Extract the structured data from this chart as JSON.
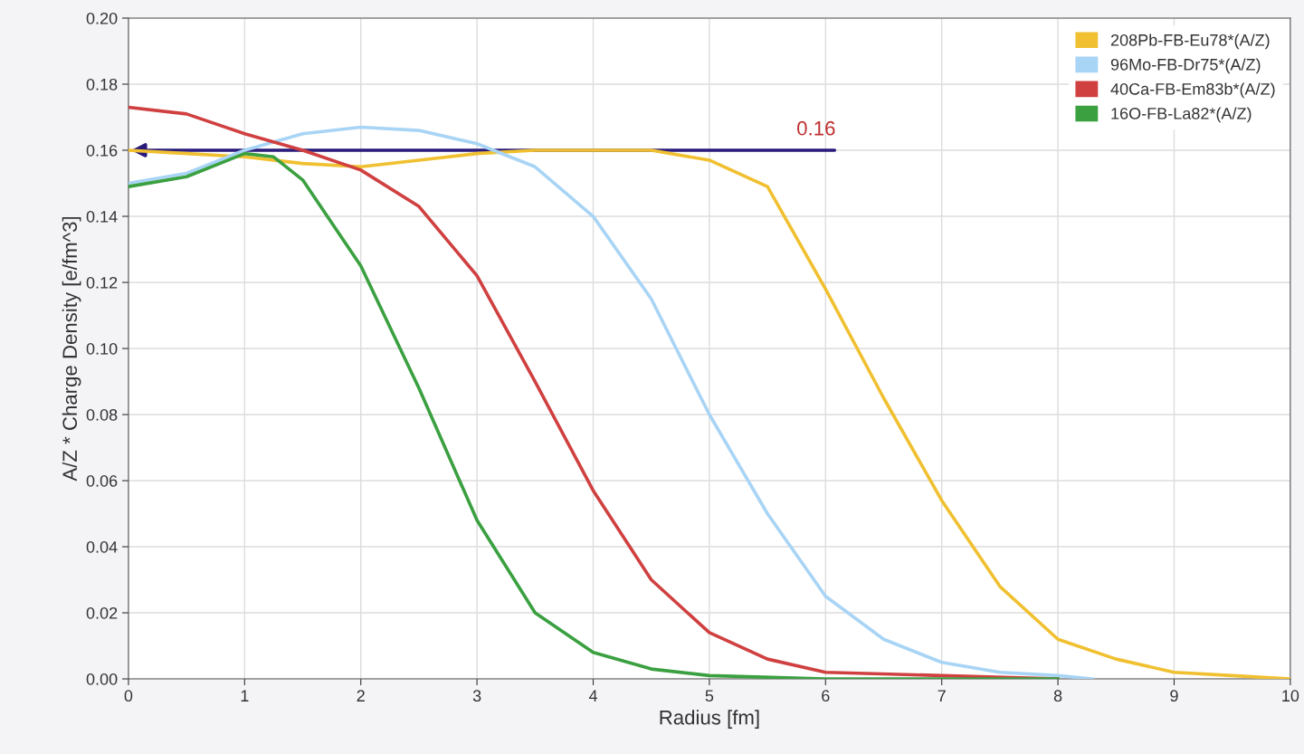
{
  "chart_data": {
    "type": "line",
    "xlabel": "Radius [fm]",
    "ylabel": "A/Z * Charge Density [e/fm^3]",
    "xlim": [
      0,
      10
    ],
    "xticks": [
      0,
      1,
      2,
      3,
      4,
      5,
      6,
      7,
      8,
      9,
      10
    ],
    "ylim": [
      0,
      0.2
    ],
    "yticks": [
      {
        "value": 0,
        "label": "0.00"
      },
      {
        "value": 0.02,
        "label": "0.02"
      },
      {
        "value": 0.04,
        "label": "0.04"
      },
      {
        "value": 0.06,
        "label": "0.06"
      },
      {
        "value": 0.08,
        "label": "0.08"
      },
      {
        "value": 0.1,
        "label": "0.10"
      },
      {
        "value": 0.12,
        "label": "0.12"
      },
      {
        "value": 0.14,
        "label": "0.14"
      },
      {
        "value": 0.16,
        "label": "0.16"
      },
      {
        "value": 0.18,
        "label": "0.18"
      },
      {
        "value": 0.2,
        "label": "0.20"
      }
    ],
    "grid": true,
    "legend": "top right",
    "marker": "none",
    "line_style": "solid",
    "annotations": [
      {
        "text": "0.16",
        "x": 0,
        "y": 0.16
      }
    ],
    "series": [
      {
        "name": "208Pb-FB-Eu78*(A/Z)",
        "color": "#f0c030",
        "x": [
          0,
          0.5,
          1,
          1.5,
          2,
          2.5,
          3,
          3.5,
          4,
          4.5,
          5,
          5.5,
          6,
          6.5,
          7,
          7.5,
          8,
          8.5,
          9,
          9.5,
          10
        ],
        "values": [
          0.16,
          0.159,
          0.158,
          0.156,
          0.155,
          0.157,
          0.159,
          0.16,
          0.16,
          0.16,
          0.157,
          0.149,
          0.118,
          0.085,
          0.054,
          0.028,
          0.012,
          0.006,
          0.002,
          0.001,
          0.0
        ]
      },
      {
        "name": "96Mo-FB-Dr75*(A/Z)",
        "color": "#a8d4f5",
        "x": [
          0,
          0.5,
          1,
          1.5,
          2,
          2.5,
          3,
          3.5,
          4,
          4.5,
          5,
          5.5,
          6,
          6.5,
          7,
          7.5,
          8,
          8.3
        ],
        "values": [
          0.15,
          0.153,
          0.16,
          0.165,
          0.167,
          0.166,
          0.162,
          0.155,
          0.14,
          0.115,
          0.08,
          0.05,
          0.025,
          0.012,
          0.005,
          0.002,
          0.001,
          0.0
        ]
      },
      {
        "name": "40Ca-FB-Em83b*(A/Z)",
        "color": "#d04040",
        "x": [
          0,
          0.5,
          1,
          1.5,
          2,
          2.5,
          3,
          3.5,
          4,
          4.5,
          5,
          5.5,
          6,
          7,
          8
        ],
        "values": [
          0.173,
          0.171,
          0.165,
          0.16,
          0.154,
          0.143,
          0.122,
          0.09,
          0.057,
          0.03,
          0.014,
          0.006,
          0.002,
          0.001,
          0.0
        ]
      },
      {
        "name": "16O-FB-La82*(A/Z)",
        "color": "#3aa040",
        "x": [
          0,
          0.5,
          1,
          1.25,
          1.5,
          2,
          2.5,
          3,
          3.5,
          4,
          4.5,
          5,
          6,
          8
        ],
        "values": [
          0.149,
          0.152,
          0.159,
          0.158,
          0.151,
          0.125,
          0.088,
          0.048,
          0.02,
          0.008,
          0.003,
          0.001,
          0.0,
          0.0
        ]
      }
    ]
  }
}
